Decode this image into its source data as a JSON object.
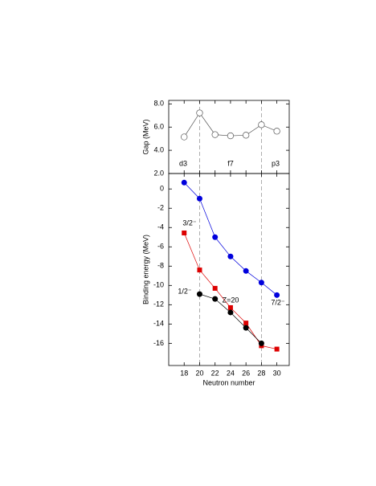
{
  "chart_data": [
    {
      "type": "line",
      "ylabel": "Gap (MeV)",
      "x": [
        18,
        20,
        22,
        24,
        26,
        28,
        30
      ],
      "series": [
        {
          "name": "Gap",
          "color": "#555555",
          "marker": "open-circle",
          "values": [
            5.15,
            7.22,
            5.35,
            5.25,
            5.3,
            6.2,
            5.65
          ]
        }
      ],
      "xlim": [
        16,
        31.6
      ],
      "xticks": [
        18,
        20,
        22,
        24,
        26,
        28,
        30
      ],
      "ylim": [
        2,
        8.3
      ],
      "yticks": [
        {
          "value": 8,
          "label": "8.0"
        },
        {
          "value": 6,
          "label": "6.0"
        },
        {
          "value": 4,
          "label": "4.0"
        },
        {
          "value": 2,
          "label": "2.0"
        }
      ],
      "vlines": [
        20,
        28
      ],
      "annotations": [
        "d3",
        "f7",
        "p3"
      ]
    },
    {
      "type": "line",
      "ylabel": "Binding energy (MeV)",
      "xlabel": "Neutron number",
      "x": [
        18,
        20,
        22,
        24,
        26,
        28,
        30
      ],
      "series": [
        {
          "name": "7/2⁻",
          "color": "#0000dd",
          "marker": "circle",
          "values": [
            0.66,
            -1.0,
            -5.0,
            -7.0,
            -8.5,
            -9.7,
            -11.0
          ]
        },
        {
          "name": "3/2⁻",
          "color": "#dd0000",
          "marker": "square",
          "values": [
            -4.56,
            -8.4,
            -10.3,
            -12.3,
            -13.9,
            -16.25,
            -16.6
          ]
        },
        {
          "name": "1/2⁻",
          "color": "#000000",
          "marker": "circle",
          "values": [
            null,
            -10.9,
            -11.4,
            -12.8,
            -14.4,
            -16.0,
            null
          ]
        }
      ],
      "xlim": [
        16,
        31.6
      ],
      "xticks": [
        18,
        20,
        22,
        24,
        26,
        28,
        30
      ],
      "ylim": [
        -18.3,
        1.6
      ],
      "yticks": [
        0,
        -2,
        -4,
        -6,
        -8,
        -10,
        -12,
        -14,
        -16
      ],
      "vlines": [
        20,
        28
      ],
      "annotations": [
        "Z=20"
      ]
    }
  ]
}
